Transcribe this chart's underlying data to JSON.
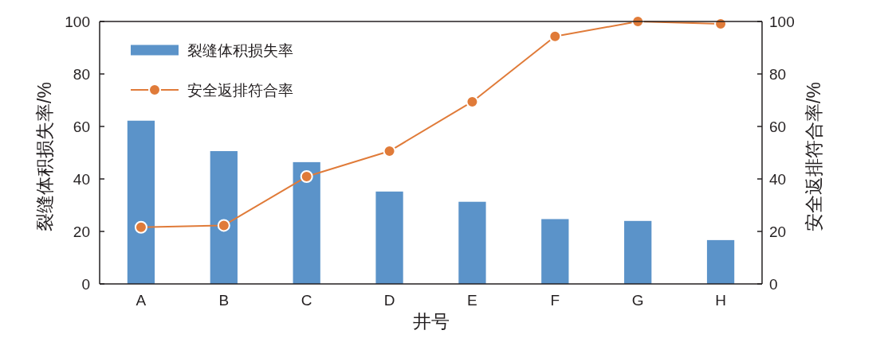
{
  "chart_data": {
    "type": "bar",
    "xlabel": "井号",
    "ylabel": "裂缝体积损失率/%",
    "y2label": "安全返排符合率/%",
    "categories": [
      "A",
      "B",
      "C",
      "D",
      "E",
      "F",
      "G",
      "H"
    ],
    "series": [
      {
        "name": "裂缝体积损失率",
        "color": "#5b93c9",
        "values": [
          62.2,
          50.6,
          46.4,
          35.2,
          31.3,
          24.7,
          24.0,
          16.7
        ]
      },
      {
        "name": "安全返排符合率",
        "type": "line",
        "axis": "y2",
        "color": "#e07b39",
        "marker": "circle",
        "values": [
          21.6,
          22.3,
          40.9,
          50.6,
          69.4,
          94.3,
          100,
          99.1
        ]
      }
    ],
    "ylim": [
      0,
      100
    ],
    "yticks": [
      0,
      20,
      40,
      60,
      80,
      100
    ],
    "y2lim": [
      0,
      100
    ],
    "y2ticks": [
      0,
      20,
      40,
      60,
      80,
      100
    ],
    "legend": "top left"
  }
}
